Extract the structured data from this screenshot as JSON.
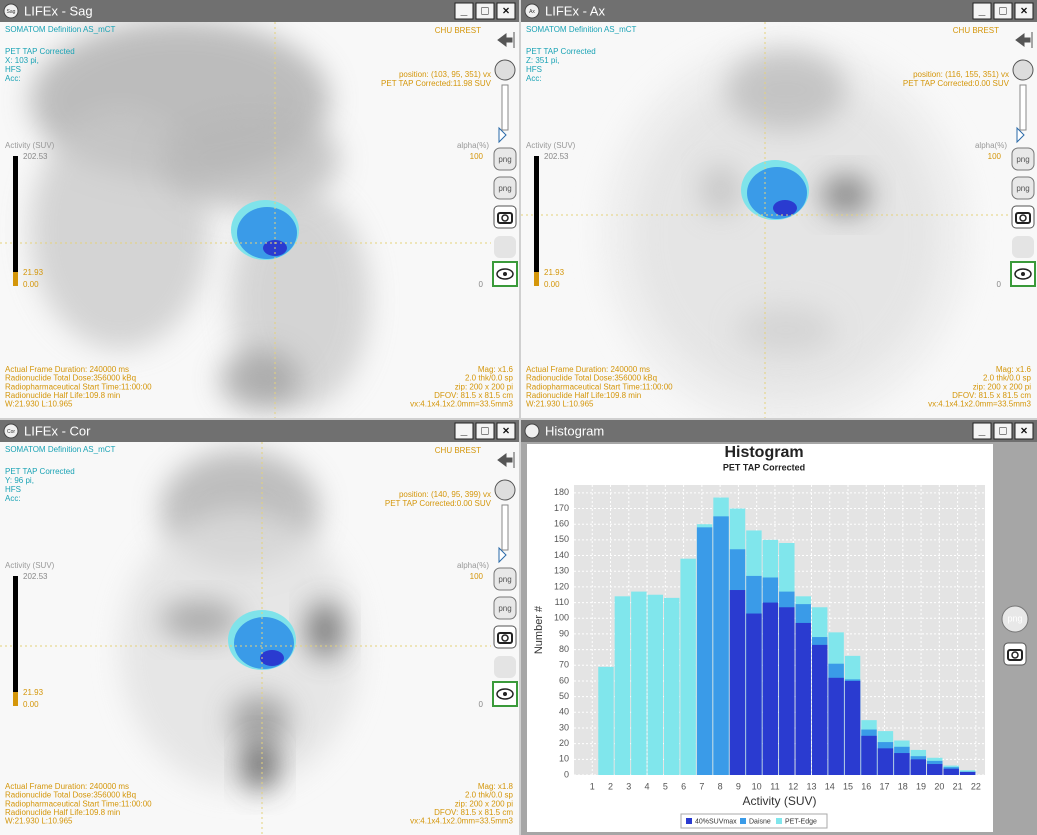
{
  "window_buttons": [
    "_",
    "□",
    "×"
  ],
  "toolbar_png_label": "png",
  "windows": [
    {
      "title": "LIFEx - Sag",
      "icon": "Sag",
      "info_left": [
        "SOMATOM Definition AS_mCT",
        "PET TAP Corrected",
        "X: 103 pi,",
        "HFS",
        "Acc:"
      ],
      "site": "CHU BREST",
      "position": "position: (103, 95, 351) vx",
      "suv": "PET TAP Corrected:11.98 SUV",
      "activity_label": "Activity (SUV)",
      "activity_max": "202.53",
      "activity_mid": "21.93",
      "activity_min": "0.00",
      "alpha_label": "alpha(%)",
      "alpha_max": "100",
      "alpha_min": "0",
      "footer_left": [
        "Actual Frame Duration: 240000 ms",
        "Radionuclide Total Dose:356000 kBq",
        "Radiopharmaceutical Start Time:11:00:00",
        "Radionuclide Half Life:109.8 min",
        "W:21.930 L:10.965"
      ],
      "footer_right": [
        "Mag: x1.6",
        "2.0 thk/0.0 sp",
        "zip: 200 x 200 pi",
        "DFOV: 81.5 x 81.5 cm",
        "vx:4.1x4.1x2.0mm=33.5mm3"
      ]
    },
    {
      "title": "LIFEx - Ax",
      "icon": "Ax",
      "info_left": [
        "SOMATOM Definition AS_mCT",
        "PET TAP Corrected",
        "Z: 351 pi,",
        "HFS",
        "Acc:"
      ],
      "site": "CHU BREST",
      "position": "position: (116, 155, 351) vx",
      "suv": "PET TAP Corrected:0.00 SUV",
      "activity_label": "Activity (SUV)",
      "activity_max": "202.53",
      "activity_mid": "21.93",
      "activity_min": "0.00",
      "alpha_label": "alpha(%)",
      "alpha_max": "100",
      "alpha_min": "0",
      "footer_left": [
        "Actual Frame Duration: 240000 ms",
        "Radionuclide Total Dose:356000 kBq",
        "Radiopharmaceutical Start Time:11:00:00",
        "Radionuclide Half Life:109.8 min",
        "W:21.930 L:10.965"
      ],
      "footer_right": [
        "Mag: x1.6",
        "2.0 thk/0.0 sp",
        "zip: 200 x 200 pi",
        "DFOV: 81.5 x 81.5 cm",
        "vx:4.1x4.1x2.0mm=33.5mm3"
      ]
    },
    {
      "title": "LIFEx - Cor",
      "icon": "Cor",
      "info_left": [
        "SOMATOM Definition AS_mCT",
        "PET TAP Corrected",
        "Y: 96 pi,",
        "HFS",
        "Acc:"
      ],
      "site": "CHU BREST",
      "position": "position: (140, 95, 399) vx",
      "suv": "PET TAP Corrected:0.00 SUV",
      "activity_label": "Activity (SUV)",
      "activity_max": "202.53",
      "activity_mid": "21.93",
      "activity_min": "0.00",
      "alpha_label": "alpha(%)",
      "alpha_max": "100",
      "alpha_min": "0",
      "footer_left": [
        "Actual Frame Duration: 240000 ms",
        "Radionuclide Total Dose:356000 kBq",
        "Radiopharmaceutical Start Time:11:00:00",
        "Radionuclide Half Life:109.8 min",
        "W:21.930 L:10.965"
      ],
      "footer_right": [
        "Mag: x1.8",
        "2.0 thk/0.0 sp",
        "zip: 200 x 200 pi",
        "DFOV: 81.5 x 81.5 cm",
        "vx:4.1x4.1x2.0mm=33.5mm3"
      ]
    }
  ],
  "histogram_window": {
    "title": "Histogram"
  },
  "chart_data": {
    "type": "histogram",
    "title": "Histogram",
    "subtitle": "PET TAP Corrected",
    "x_label": "Activity (SUV)",
    "y_label": "Number #",
    "bins": [
      1.3,
      2.2,
      3.1,
      4.0,
      4.9,
      5.8,
      6.7,
      7.6,
      8.5,
      9.4,
      10.3,
      11.2,
      12.1,
      13.0,
      13.9,
      14.8,
      15.7,
      16.6,
      17.5,
      18.4,
      19.3,
      20.2,
      21.1,
      22.0
    ],
    "series": [
      {
        "name": "40%SUVmax",
        "color": "#2a3bd0",
        "values": [
          null,
          null,
          null,
          null,
          null,
          null,
          null,
          null,
          118,
          103,
          110,
          107,
          97,
          83,
          62,
          60,
          25,
          17,
          14,
          10,
          7,
          4,
          2
        ]
      },
      {
        "name": "Daisne",
        "color": "#3a9be8",
        "values": [
          null,
          null,
          null,
          null,
          null,
          null,
          158,
          165,
          144,
          127,
          126,
          117,
          109,
          88,
          71,
          61,
          29,
          21,
          18,
          12,
          9,
          5,
          2
        ]
      },
      {
        "name": "PET-Edge",
        "color": "#80e6ec",
        "values": [
          69,
          114,
          117,
          115,
          113,
          138,
          160,
          177,
          170,
          156,
          150,
          148,
          114,
          107,
          91,
          76,
          35,
          28,
          22,
          16,
          11,
          6,
          3
        ]
      }
    ],
    "xlim": [
      0,
      22.5
    ],
    "xticks": [
      1,
      2,
      3,
      4,
      5,
      6,
      7,
      8,
      9,
      10,
      11,
      12,
      13,
      14,
      15,
      16,
      17,
      18,
      19,
      20,
      21,
      22
    ],
    "ylim": [
      0,
      185
    ],
    "yticks": [
      0,
      10,
      20,
      30,
      40,
      50,
      60,
      70,
      80,
      90,
      100,
      110,
      120,
      130,
      140,
      150,
      160,
      170,
      180
    ],
    "grid": true,
    "legend": "bottom"
  }
}
